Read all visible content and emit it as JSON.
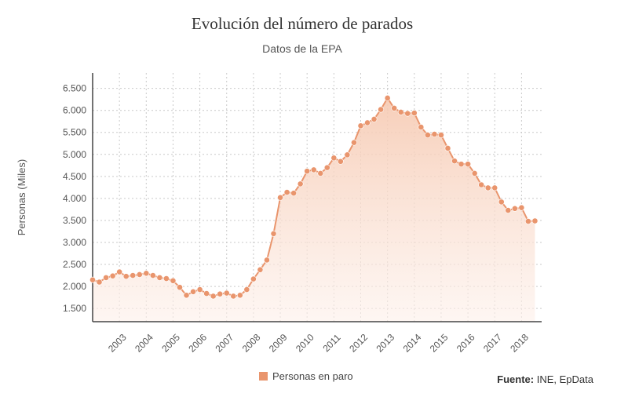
{
  "title": "Evolución del número de parados",
  "subtitle": "Datos de la EPA",
  "source_label": "Fuente:",
  "source_text": " INE, EpData",
  "colors": {
    "line": "#e9956d",
    "point": "#e9956d",
    "fill_top": "#f6c9b1",
    "fill_bottom": "#fdf0ea",
    "grid": "#c9c9c9",
    "axis": "#444444",
    "text": "#555555"
  },
  "chart_data": {
    "type": "area",
    "ylabel": "Personas (Miles)",
    "xlabel": "",
    "ylim": [
      1200,
      6850
    ],
    "xlim": [
      2002.0,
      2018.75
    ],
    "y_ticks": [
      1500,
      2000,
      2500,
      3000,
      3500,
      4000,
      4500,
      5000,
      5500,
      6000,
      6500
    ],
    "y_tick_labels": [
      "1.500",
      "2.000",
      "2.500",
      "3.000",
      "3.500",
      "4.000",
      "4.500",
      "5.000",
      "5.500",
      "6.000",
      "6.500"
    ],
    "x_ticks": [
      2003,
      2004,
      2005,
      2006,
      2007,
      2008,
      2009,
      2010,
      2011,
      2012,
      2013,
      2014,
      2015,
      2016,
      2017,
      2018
    ],
    "x_tick_labels": [
      "2003",
      "2004",
      "2005",
      "2006",
      "2007",
      "2008",
      "2009",
      "2010",
      "2011",
      "2012",
      "2013",
      "2014",
      "2015",
      "2016",
      "2017",
      "2018"
    ],
    "grid": true,
    "legend_position": "bottom",
    "series": [
      {
        "name": "Personas en paro",
        "x": [
          2002.0,
          2002.25,
          2002.5,
          2002.75,
          2003.0,
          2003.25,
          2003.5,
          2003.75,
          2004.0,
          2004.25,
          2004.5,
          2004.75,
          2005.0,
          2005.25,
          2005.5,
          2005.75,
          2006.0,
          2006.25,
          2006.5,
          2006.75,
          2007.0,
          2007.25,
          2007.5,
          2007.75,
          2008.0,
          2008.25,
          2008.5,
          2008.75,
          2009.0,
          2009.25,
          2009.5,
          2009.75,
          2010.0,
          2010.25,
          2010.5,
          2010.75,
          2011.0,
          2011.25,
          2011.5,
          2011.75,
          2012.0,
          2012.25,
          2012.5,
          2012.75,
          2013.0,
          2013.25,
          2013.5,
          2013.75,
          2014.0,
          2014.25,
          2014.5,
          2014.75,
          2015.0,
          2015.25,
          2015.5,
          2015.75,
          2016.0,
          2016.25,
          2016.5,
          2016.75,
          2017.0,
          2017.25,
          2017.5,
          2017.75,
          2018.0,
          2018.25,
          2018.5
        ],
        "values": [
          2150,
          2100,
          2200,
          2240,
          2330,
          2230,
          2250,
          2270,
          2300,
          2250,
          2200,
          2180,
          2130,
          1980,
          1800,
          1880,
          1930,
          1840,
          1780,
          1830,
          1850,
          1780,
          1800,
          1930,
          2170,
          2380,
          2600,
          3200,
          4020,
          4140,
          4120,
          4330,
          4620,
          4650,
          4570,
          4700,
          4920,
          4840,
          4990,
          5270,
          5650,
          5720,
          5800,
          6020,
          6280,
          6050,
          5960,
          5930,
          5940,
          5620,
          5440,
          5460,
          5440,
          5140,
          4850,
          4780,
          4780,
          4570,
          4310,
          4240,
          4240,
          3920,
          3730,
          3770,
          3790,
          3480,
          3490
        ]
      }
    ]
  }
}
